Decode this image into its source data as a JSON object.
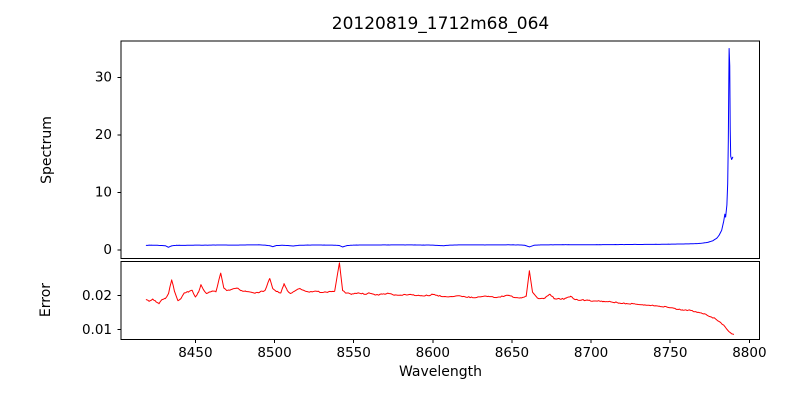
{
  "chart_data": {
    "type": "line",
    "title": "20120819_1712m68_064",
    "xlabel": "Wavelength",
    "xlim": [
      8403,
      8806.4
    ],
    "xticks": [
      8450,
      8500,
      8550,
      8600,
      8650,
      8700,
      8750,
      8800
    ],
    "xtick_labels": [
      "8450",
      "8500",
      "8550",
      "8600",
      "8650",
      "8700",
      "8750",
      "8800"
    ],
    "grid": false,
    "legend": "none",
    "subplots": [
      {
        "name": "spectrum",
        "ylabel": "Spectrum",
        "ylim": [
          -1.5,
          36.3
        ],
        "yticks": [
          0,
          10,
          20,
          30
        ],
        "ytick_labels": [
          "0",
          "10",
          "20",
          "30"
        ],
        "color": "#0000ff",
        "noise_amp": 0.015,
        "sample_step": 0.9,
        "anchors": [
          [
            8419,
            0.78
          ],
          [
            8422,
            0.82
          ],
          [
            8425,
            0.8
          ],
          [
            8428,
            0.76
          ],
          [
            8431,
            0.72
          ],
          [
            8433,
            0.45
          ],
          [
            8435,
            0.7
          ],
          [
            8438,
            0.8
          ],
          [
            8442,
            0.78
          ],
          [
            8446,
            0.8
          ],
          [
            8450,
            0.82
          ],
          [
            8455,
            0.8
          ],
          [
            8460,
            0.83
          ],
          [
            8466,
            0.85
          ],
          [
            8472,
            0.82
          ],
          [
            8478,
            0.84
          ],
          [
            8484,
            0.86
          ],
          [
            8490,
            0.88
          ],
          [
            8494,
            0.82
          ],
          [
            8497,
            0.72
          ],
          [
            8499,
            0.55
          ],
          [
            8501,
            0.75
          ],
          [
            8505,
            0.8
          ],
          [
            8509,
            0.74
          ],
          [
            8512,
            0.68
          ],
          [
            8515,
            0.78
          ],
          [
            8520,
            0.83
          ],
          [
            8526,
            0.85
          ],
          [
            8532,
            0.83
          ],
          [
            8538,
            0.81
          ],
          [
            8541,
            0.75
          ],
          [
            8543,
            0.5
          ],
          [
            8546,
            0.76
          ],
          [
            8550,
            0.83
          ],
          [
            8556,
            0.85
          ],
          [
            8562,
            0.84
          ],
          [
            8570,
            0.86
          ],
          [
            8578,
            0.87
          ],
          [
            8586,
            0.86
          ],
          [
            8594,
            0.84
          ],
          [
            8600,
            0.83
          ],
          [
            8604,
            0.76
          ],
          [
            8607,
            0.72
          ],
          [
            8610,
            0.8
          ],
          [
            8616,
            0.86
          ],
          [
            8624,
            0.87
          ],
          [
            8632,
            0.86
          ],
          [
            8640,
            0.87
          ],
          [
            8648,
            0.88
          ],
          [
            8654,
            0.86
          ],
          [
            8658,
            0.8
          ],
          [
            8661,
            0.52
          ],
          [
            8664,
            0.8
          ],
          [
            8668,
            0.86
          ],
          [
            8675,
            0.88
          ],
          [
            8683,
            0.9
          ],
          [
            8691,
            0.89
          ],
          [
            8700,
            0.9
          ],
          [
            8710,
            0.91
          ],
          [
            8720,
            0.93
          ],
          [
            8730,
            0.94
          ],
          [
            8740,
            0.96
          ],
          [
            8748,
            0.98
          ],
          [
            8755,
            1.01
          ],
          [
            8761,
            1.04
          ],
          [
            8766,
            1.09
          ],
          [
            8770,
            1.16
          ],
          [
            8774,
            1.32
          ],
          [
            8777,
            1.6
          ],
          [
            8779.5,
            2.05
          ],
          [
            8781,
            2.6
          ],
          [
            8782.5,
            3.4
          ],
          [
            8783.8,
            5.0
          ],
          [
            8784.5,
            6.2
          ],
          [
            8785,
            5.7
          ],
          [
            8785.8,
            7.8
          ],
          [
            8786.3,
            11.5
          ],
          [
            8786.7,
            19.0
          ],
          [
            8787.0,
            29.0
          ],
          [
            8787.2,
            35.0
          ],
          [
            8787.6,
            32.0
          ],
          [
            8787.9,
            21.0
          ],
          [
            8788.2,
            16.3
          ],
          [
            8788.8,
            15.7
          ],
          [
            8789.5,
            16.1
          ]
        ]
      },
      {
        "name": "error",
        "ylabel": "Error",
        "ylim": [
          0.0071,
          0.03
        ],
        "yticks": [
          0.01,
          0.02
        ],
        "ytick_labels": [
          "0.01",
          "0.02"
        ],
        "color": "#ff0000",
        "noise_amp": 0.00022,
        "sample_step": 0.9,
        "anchors": [
          [
            8419,
            0.0188
          ],
          [
            8421,
            0.0184
          ],
          [
            8423,
            0.019
          ],
          [
            8425,
            0.0182
          ],
          [
            8427,
            0.0176
          ],
          [
            8429,
            0.0188
          ],
          [
            8431,
            0.0191
          ],
          [
            8433,
            0.0205
          ],
          [
            8435,
            0.0246
          ],
          [
            8437,
            0.021
          ],
          [
            8439,
            0.0185
          ],
          [
            8441,
            0.0192
          ],
          [
            8443,
            0.0208
          ],
          [
            8446,
            0.0212
          ],
          [
            8448,
            0.0215
          ],
          [
            8450,
            0.0196
          ],
          [
            8452,
            0.021
          ],
          [
            8453.5,
            0.0232
          ],
          [
            8455,
            0.0218
          ],
          [
            8457,
            0.0206
          ],
          [
            8459,
            0.021
          ],
          [
            8461,
            0.0213
          ],
          [
            8463,
            0.0211
          ],
          [
            8466,
            0.0266
          ],
          [
            8468,
            0.0222
          ],
          [
            8470,
            0.0215
          ],
          [
            8473,
            0.0218
          ],
          [
            8476,
            0.0222
          ],
          [
            8479,
            0.0215
          ],
          [
            8482,
            0.0212
          ],
          [
            8485,
            0.021
          ],
          [
            8488,
            0.0208
          ],
          [
            8491,
            0.0212
          ],
          [
            8494,
            0.0215
          ],
          [
            8497,
            0.025
          ],
          [
            8499,
            0.022
          ],
          [
            8501,
            0.0212
          ],
          [
            8504,
            0.0208
          ],
          [
            8506,
            0.0235
          ],
          [
            8508,
            0.0215
          ],
          [
            8510,
            0.0206
          ],
          [
            8513,
            0.0214
          ],
          [
            8516,
            0.0221
          ],
          [
            8519,
            0.0214
          ],
          [
            8522,
            0.021
          ],
          [
            8526,
            0.0213
          ],
          [
            8530,
            0.0209
          ],
          [
            8534,
            0.0211
          ],
          [
            8538,
            0.0213
          ],
          [
            8541,
            0.0296
          ],
          [
            8543,
            0.0215
          ],
          [
            8545,
            0.0207
          ],
          [
            8549,
            0.0205
          ],
          [
            8553,
            0.0208
          ],
          [
            8557,
            0.0204
          ],
          [
            8560,
            0.0207
          ],
          [
            8564,
            0.0202
          ],
          [
            8568,
            0.0204
          ],
          [
            8572,
            0.0206
          ],
          [
            8576,
            0.0202
          ],
          [
            8580,
            0.0201
          ],
          [
            8585,
            0.0203
          ],
          [
            8590,
            0.02
          ],
          [
            8595,
            0.0199
          ],
          [
            8600,
            0.0203
          ],
          [
            8605,
            0.0198
          ],
          [
            8610,
            0.0196
          ],
          [
            8615,
            0.0199
          ],
          [
            8620,
            0.0197
          ],
          [
            8625,
            0.0194
          ],
          [
            8630,
            0.0196
          ],
          [
            8635,
            0.0198
          ],
          [
            8640,
            0.0194
          ],
          [
            8645,
            0.0198
          ],
          [
            8648,
            0.0201
          ],
          [
            8652,
            0.0194
          ],
          [
            8656,
            0.0193
          ],
          [
            8659,
            0.0198
          ],
          [
            8661,
            0.0273
          ],
          [
            8663,
            0.021
          ],
          [
            8666,
            0.0193
          ],
          [
            8670,
            0.0191
          ],
          [
            8674,
            0.0204
          ],
          [
            8677,
            0.0191
          ],
          [
            8681,
            0.0189
          ],
          [
            8684,
            0.0192
          ],
          [
            8687,
            0.0198
          ],
          [
            8690,
            0.0188
          ],
          [
            8694,
            0.0187
          ],
          [
            8698,
            0.0186
          ],
          [
            8703,
            0.0184
          ],
          [
            8708,
            0.0183
          ],
          [
            8713,
            0.0181
          ],
          [
            8718,
            0.0178
          ],
          [
            8723,
            0.0176
          ],
          [
            8728,
            0.0175
          ],
          [
            8733,
            0.0172
          ],
          [
            8738,
            0.0171
          ],
          [
            8743,
            0.0169
          ],
          [
            8748,
            0.0166
          ],
          [
            8752,
            0.0163
          ],
          [
            8755,
            0.0159
          ],
          [
            8758,
            0.0157
          ],
          [
            8762,
            0.0158
          ],
          [
            8766,
            0.0153
          ],
          [
            8770,
            0.0148
          ],
          [
            8773,
            0.0143
          ],
          [
            8776,
            0.0137
          ],
          [
            8779,
            0.013
          ],
          [
            8782,
            0.012
          ],
          [
            8784,
            0.0112
          ],
          [
            8786,
            0.01
          ],
          [
            8788,
            0.0091
          ],
          [
            8790,
            0.0086
          ]
        ]
      }
    ]
  }
}
